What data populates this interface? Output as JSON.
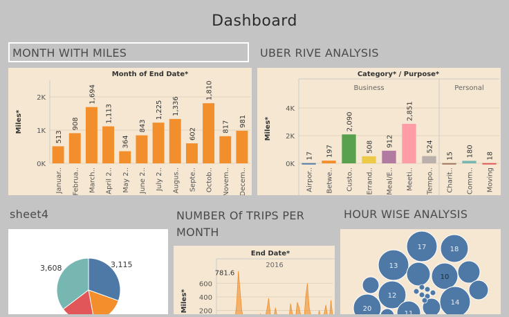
{
  "dashboard_title": "Dashboard",
  "sheets": {
    "month_miles": "MONTH WITH MILES",
    "uber_rive": "UBER RIVE ANALYSIS",
    "sheet4": "sheet4",
    "trips_per_month": "NUMBER Of TRIPS PER MONTH",
    "hour_wise": "HOUR WISE ANALYSIS"
  },
  "colors": {
    "orange": "#f28e2b",
    "blue": "#4e79a7",
    "bg_panel": "#f5e7d1",
    "grid": "#e3d3ba"
  },
  "chart_data": [
    {
      "id": "month_miles",
      "type": "bar",
      "title": "Month of End Date*",
      "ylabel": "Miles*",
      "ylim": [
        0,
        2500
      ],
      "yticks": [
        {
          "v": 0,
          "t": "0K"
        },
        {
          "v": 1000,
          "t": "1K"
        },
        {
          "v": 2000,
          "t": "2K"
        }
      ],
      "categories": [
        "Januar..",
        "Februa..",
        "March..",
        "April 2..",
        "May 2..",
        "June 2..",
        "July 2..",
        "Augus..",
        "Septe..",
        "Octob..",
        "Novem..",
        "Decem.."
      ],
      "values": [
        513,
        908,
        1694,
        1113,
        364,
        843,
        1225,
        1336,
        602,
        1810,
        817,
        981
      ],
      "value_labels": [
        "513",
        "908",
        "1,694",
        "1,113",
        "364",
        "843",
        "1,225",
        "1,336",
        "602",
        "1,810",
        "817",
        "981"
      ],
      "color": "#f28e2b"
    },
    {
      "id": "uber_rive",
      "type": "bar",
      "title": "Category* / Purpose*",
      "ylabel": "Miles*",
      "ylim": [
        0,
        5000
      ],
      "yticks": [
        {
          "v": 0,
          "t": "0K"
        },
        {
          "v": 2000,
          "t": "2K"
        },
        {
          "v": 4000,
          "t": "4K"
        }
      ],
      "groups": [
        {
          "name": "Business",
          "categories": [
            "Airpor..",
            "Betwe..",
            "Custo..",
            "Errand..",
            "Meal/E..",
            "Meeti..",
            "Tempo.."
          ],
          "values": [
            17,
            197,
            2090,
            508,
            912,
            2851,
            524
          ],
          "value_labels": [
            "17",
            "197",
            "2,090",
            "508",
            "912",
            "2,851",
            "524"
          ],
          "colors": [
            "#4e79a7",
            "#f28e2b",
            "#59a14f",
            "#edc948",
            "#b07aa1",
            "#ff9da7",
            "#bab0ac"
          ]
        },
        {
          "name": "Personal",
          "categories": [
            "Charit..",
            "Comm..",
            "Moving"
          ],
          "values": [
            15,
            180,
            18
          ],
          "value_labels": [
            "15",
            "180",
            "18"
          ],
          "colors": [
            "#9c755f",
            "#76b7b2",
            "#e15759"
          ]
        }
      ]
    },
    {
      "id": "sheet4",
      "type": "pie",
      "slices": [
        {
          "label": "3,115",
          "value": 3115,
          "color": "#4e79a7"
        },
        {
          "label": "",
          "value": 1700,
          "color": "#f28e2b"
        },
        {
          "label": "",
          "value": 1800,
          "color": "#e15759"
        },
        {
          "label": "3,608",
          "value": 3608,
          "color": "#76b7b2"
        }
      ]
    },
    {
      "id": "trips_per_month",
      "type": "area",
      "title": "End Date*",
      "subtitle": "2016",
      "ylabel": "Miles*",
      "ylim": [
        0,
        850
      ],
      "yticks": [
        {
          "v": 200,
          "t": "200"
        },
        {
          "v": 400,
          "t": "400"
        },
        {
          "v": 600,
          "t": "600"
        }
      ],
      "annotation": "781.6",
      "values": [
        20,
        35,
        60,
        30,
        80,
        50,
        120,
        90,
        40,
        30,
        50,
        70,
        300,
        781.6,
        500,
        200,
        80,
        40,
        60,
        110,
        70,
        30,
        40,
        60,
        50,
        90,
        150,
        80,
        60,
        100,
        220,
        380,
        150,
        60,
        80,
        240,
        120,
        60,
        90,
        130,
        110,
        70,
        40,
        60,
        300,
        160,
        70,
        90,
        320,
        250,
        130,
        80,
        60,
        400,
        600,
        260,
        120,
        80,
        60,
        40,
        30,
        200,
        80,
        40,
        160,
        280,
        100,
        60,
        350,
        120
      ],
      "color": "#f28e2b"
    },
    {
      "id": "hour_wise",
      "type": "bubble",
      "labels": [
        "17",
        "18",
        "13",
        "10",
        "12",
        "20",
        "14",
        "11"
      ],
      "color": "#4e79a7"
    }
  ]
}
